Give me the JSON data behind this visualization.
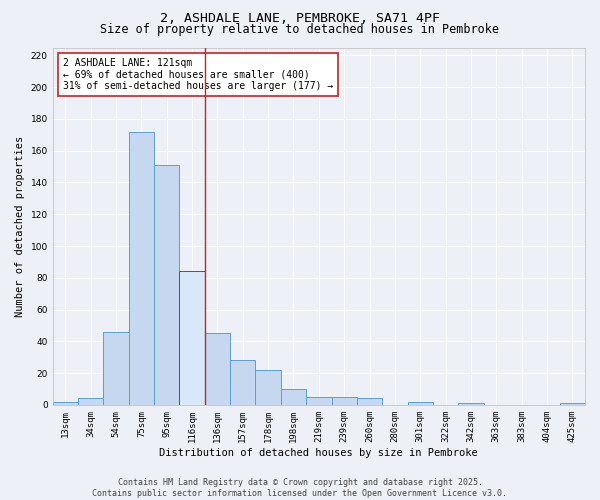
{
  "title": "2, ASHDALE LANE, PEMBROKE, SA71 4PF",
  "subtitle": "Size of property relative to detached houses in Pembroke",
  "xlabel": "Distribution of detached houses by size in Pembroke",
  "ylabel": "Number of detached properties",
  "bar_labels": [
    "13sqm",
    "34sqm",
    "54sqm",
    "75sqm",
    "95sqm",
    "116sqm",
    "136sqm",
    "157sqm",
    "178sqm",
    "198sqm",
    "219sqm",
    "239sqm",
    "260sqm",
    "280sqm",
    "301sqm",
    "322sqm",
    "342sqm",
    "363sqm",
    "383sqm",
    "404sqm",
    "425sqm"
  ],
  "bar_values": [
    2,
    4,
    46,
    172,
    151,
    84,
    45,
    28,
    22,
    10,
    5,
    5,
    4,
    0,
    2,
    0,
    1,
    0,
    0,
    0,
    1
  ],
  "bar_color": "#c5d8f0",
  "bar_edge_color": "#5a9fd4",
  "highlight_index": 5,
  "highlight_bar_color": "#d8e8f8",
  "highlight_bar_edge_color": "#cc2222",
  "vline_color": "#cc2222",
  "annotation_text": "2 ASHDALE LANE: 121sqm\n← 69% of detached houses are smaller (400)\n31% of semi-detached houses are larger (177) →",
  "annotation_box_facecolor": "#ffffff",
  "annotation_box_edgecolor": "#cc2222",
  "ylim": [
    0,
    225
  ],
  "yticks": [
    0,
    20,
    40,
    60,
    80,
    100,
    120,
    140,
    160,
    180,
    200,
    220
  ],
  "bg_color": "#edf1f7",
  "grid_color": "#ffffff",
  "footer_text": "Contains HM Land Registry data © Crown copyright and database right 2025.\nContains public sector information licensed under the Open Government Licence v3.0.",
  "title_fontsize": 9.5,
  "subtitle_fontsize": 8.5,
  "axis_label_fontsize": 7.5,
  "tick_fontsize": 6.5,
  "annotation_fontsize": 7,
  "footer_fontsize": 6
}
